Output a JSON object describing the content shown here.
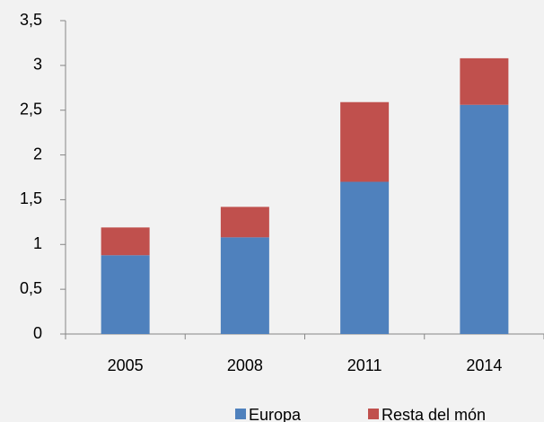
{
  "chart_data": {
    "type": "stacked_bar",
    "categories": [
      "2005",
      "2008",
      "2011",
      "2014"
    ],
    "series": [
      {
        "name": "Europa",
        "color": "#4f81bd",
        "values": [
          0.88,
          1.08,
          1.7,
          2.56
        ]
      },
      {
        "name": "Resta del món",
        "color": "#c0504d",
        "values": [
          0.31,
          0.34,
          0.89,
          0.52
        ]
      }
    ],
    "ylim": [
      0,
      3.5
    ],
    "yticks": [
      0,
      {
        "value": 0.5,
        "label": "0,5"
      },
      1,
      {
        "value": 1.5,
        "label": "1,5"
      },
      2,
      {
        "value": 2.5,
        "label": "2,5"
      },
      3,
      {
        "value": 3.5,
        "label": "3,5"
      }
    ],
    "grid": false,
    "legend": "bottom"
  }
}
